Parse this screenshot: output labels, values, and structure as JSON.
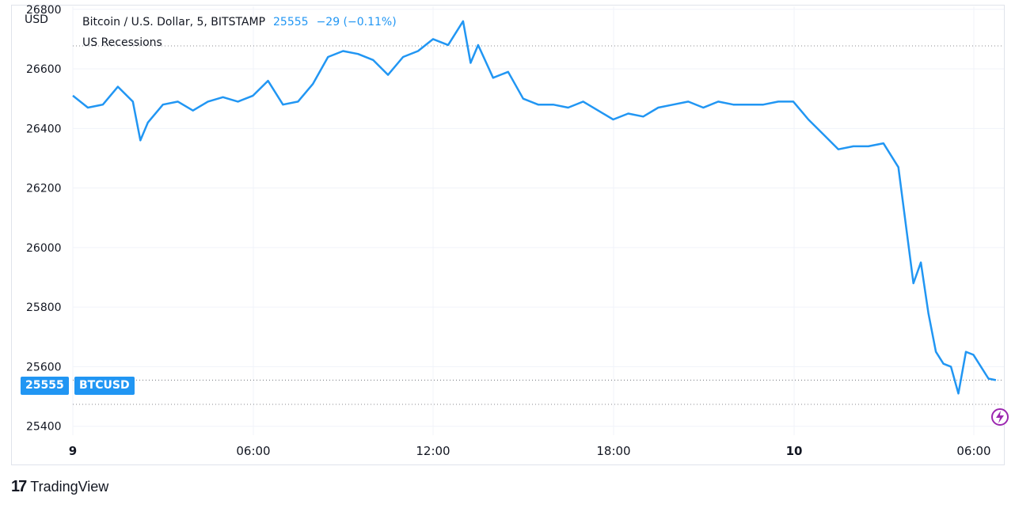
{
  "header": {
    "symbol_description": "Bitcoin / U.S. Dollar, 5, BITSTAMP",
    "last_price": "25555",
    "change": "−29 (−0.11%)",
    "indicator": "US Recessions"
  },
  "axis": {
    "currency": "USD"
  },
  "price_badge": {
    "price": "25555",
    "ticker": "BTCUSD"
  },
  "branding": {
    "name": "TradingView"
  },
  "colors": {
    "line": "#2196f3",
    "grid": "#f0f3fa",
    "text": "#131722",
    "badge": "#2196f3"
  },
  "chart_data": {
    "type": "line",
    "title": "Bitcoin / U.S. Dollar, 5, BITSTAMP",
    "ylabel": "USD",
    "ylim": [
      25370,
      26810
    ],
    "yticks": [
      25400,
      25600,
      25800,
      26000,
      26200,
      26400,
      26600,
      26800
    ],
    "xticks": [
      "9",
      "06:00",
      "12:00",
      "18:00",
      "10",
      "06:00"
    ],
    "grid": true,
    "legend": "top-left",
    "series": [
      {
        "name": "BTCUSD",
        "x": [
          "9 00:00",
          "9 00:30",
          "9 01:00",
          "9 01:30",
          "9 02:00",
          "9 02:15",
          "9 02:30",
          "9 03:00",
          "9 03:30",
          "9 04:00",
          "9 04:30",
          "9 05:00",
          "9 05:30",
          "9 06:00",
          "9 06:30",
          "9 07:00",
          "9 07:30",
          "9 08:00",
          "9 08:30",
          "9 09:00",
          "9 09:30",
          "9 10:00",
          "9 10:30",
          "9 11:00",
          "9 11:30",
          "9 12:00",
          "9 12:30",
          "9 13:00",
          "9 13:15",
          "9 13:30",
          "9 14:00",
          "9 14:30",
          "9 15:00",
          "9 15:30",
          "9 16:00",
          "9 16:30",
          "9 17:00",
          "9 17:30",
          "9 18:00",
          "9 18:30",
          "9 19:00",
          "9 19:30",
          "9 20:00",
          "9 20:30",
          "9 21:00",
          "9 21:30",
          "9 22:00",
          "9 22:30",
          "9 23:00",
          "9 23:30",
          "10 00:00",
          "10 00:30",
          "10 01:00",
          "10 01:30",
          "10 02:00",
          "10 02:30",
          "10 03:00",
          "10 03:30",
          "10 04:00",
          "10 04:15",
          "10 04:30",
          "10 04:45",
          "10 05:00",
          "10 05:15",
          "10 05:30",
          "10 05:45",
          "10 06:00",
          "10 06:30",
          "10 06:45"
        ],
        "values": [
          26510,
          26470,
          26480,
          26540,
          26490,
          26360,
          26420,
          26480,
          26490,
          26460,
          26490,
          26505,
          26490,
          26510,
          26560,
          26480,
          26490,
          26550,
          26640,
          26660,
          26650,
          26630,
          26580,
          26640,
          26660,
          26700,
          26680,
          26760,
          26620,
          26680,
          26570,
          26590,
          26500,
          26480,
          26480,
          26470,
          26490,
          26460,
          26430,
          26450,
          26440,
          26470,
          26480,
          26490,
          26470,
          26490,
          26480,
          26480,
          26480,
          26490,
          26490,
          26430,
          26380,
          26330,
          26340,
          26340,
          26350,
          26270,
          25880,
          25950,
          25780,
          25650,
          25610,
          25600,
          25510,
          25650,
          25640,
          25560,
          25555
        ]
      }
    ]
  }
}
